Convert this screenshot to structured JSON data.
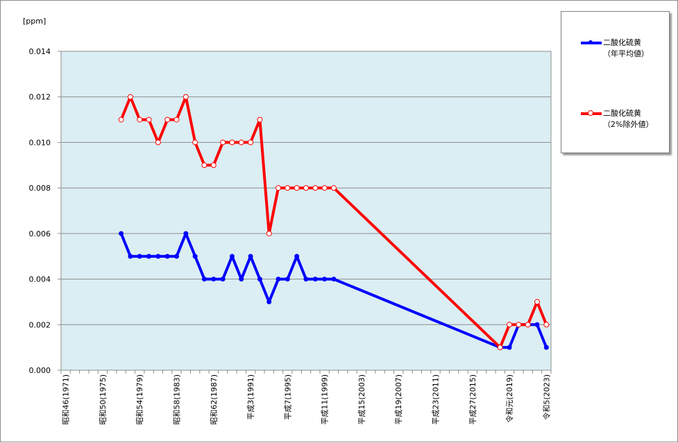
{
  "chart_data": {
    "type": "line",
    "unit_label": "[ppm]",
    "ylim": [
      0,
      0.014
    ],
    "yticks": [
      "0.000",
      "0.002",
      "0.004",
      "0.006",
      "0.008",
      "0.010",
      "0.012",
      "0.014"
    ],
    "x_years": [
      1971,
      1972,
      1973,
      1974,
      1975,
      1976,
      1977,
      1978,
      1979,
      1980,
      1981,
      1982,
      1983,
      1984,
      1985,
      1986,
      1987,
      1988,
      1989,
      1990,
      1991,
      1992,
      1993,
      1994,
      1995,
      1996,
      1997,
      1998,
      1999,
      2000,
      2001,
      2002,
      2003,
      2004,
      2005,
      2006,
      2007,
      2008,
      2009,
      2010,
      2011,
      2012,
      2013,
      2014,
      2015,
      2016,
      2017,
      2018,
      2019,
      2020,
      2021,
      2022,
      2023
    ],
    "xtick_labels": [
      {
        "year": 1971,
        "label": "昭和46(1971)"
      },
      {
        "year": 1975,
        "label": "昭和50(1975)"
      },
      {
        "year": 1979,
        "label": "昭和54(1979)"
      },
      {
        "year": 1983,
        "label": "昭和58(1983)"
      },
      {
        "year": 1987,
        "label": "昭和62(1987)"
      },
      {
        "year": 1991,
        "label": "平成3(1991)"
      },
      {
        "year": 1995,
        "label": "平成7(1995)"
      },
      {
        "year": 1999,
        "label": "平成11(1999)"
      },
      {
        "year": 2003,
        "label": "平成15(2003)"
      },
      {
        "year": 2007,
        "label": "平成19(2007)"
      },
      {
        "year": 2011,
        "label": "平成23(2011)"
      },
      {
        "year": 2015,
        "label": "平成27(2015)"
      },
      {
        "year": 2019,
        "label": "令和元(2019)"
      },
      {
        "year": 2023,
        "label": "令和5(2023)"
      }
    ],
    "grid": true,
    "legend_position": "right",
    "series": [
      {
        "name_line1": "二酸化硫黄",
        "name_line2": "（年平均値）",
        "color": "#0000ff",
        "marker": "filled-circle",
        "points": [
          [
            1977,
            0.006
          ],
          [
            1978,
            0.005
          ],
          [
            1979,
            0.005
          ],
          [
            1980,
            0.005
          ],
          [
            1981,
            0.005
          ],
          [
            1982,
            0.005
          ],
          [
            1983,
            0.005
          ],
          [
            1984,
            0.006
          ],
          [
            1985,
            0.005
          ],
          [
            1986,
            0.004
          ],
          [
            1987,
            0.004
          ],
          [
            1988,
            0.004
          ],
          [
            1989,
            0.005
          ],
          [
            1990,
            0.004
          ],
          [
            1991,
            0.005
          ],
          [
            1992,
            0.004
          ],
          [
            1993,
            0.003
          ],
          [
            1994,
            0.004
          ],
          [
            1995,
            0.004
          ],
          [
            1996,
            0.005
          ],
          [
            1997,
            0.004
          ],
          [
            1998,
            0.004
          ],
          [
            1999,
            0.004
          ],
          [
            2000,
            0.004
          ],
          [
            2018,
            0.001
          ],
          [
            2019,
            0.001
          ],
          [
            2020,
            0.002
          ],
          [
            2021,
            0.002
          ],
          [
            2022,
            0.002
          ],
          [
            2023,
            0.001
          ]
        ]
      },
      {
        "name_line1": "二酸化硫黄",
        "name_line2": "（2%除外値）",
        "color": "#ff0000",
        "marker": "hollow-circle",
        "points": [
          [
            1977,
            0.011
          ],
          [
            1978,
            0.012
          ],
          [
            1979,
            0.011
          ],
          [
            1980,
            0.011
          ],
          [
            1981,
            0.01
          ],
          [
            1982,
            0.011
          ],
          [
            1983,
            0.011
          ],
          [
            1984,
            0.012
          ],
          [
            1985,
            0.01
          ],
          [
            1986,
            0.009
          ],
          [
            1987,
            0.009
          ],
          [
            1988,
            0.01
          ],
          [
            1989,
            0.01
          ],
          [
            1990,
            0.01
          ],
          [
            1991,
            0.01
          ],
          [
            1992,
            0.011
          ],
          [
            1993,
            0.006
          ],
          [
            1994,
            0.008
          ],
          [
            1995,
            0.008
          ],
          [
            1996,
            0.008
          ],
          [
            1997,
            0.008
          ],
          [
            1998,
            0.008
          ],
          [
            1999,
            0.008
          ],
          [
            2000,
            0.008
          ],
          [
            2018,
            0.001
          ],
          [
            2019,
            0.002
          ],
          [
            2020,
            0.002
          ],
          [
            2021,
            0.002
          ],
          [
            2022,
            0.003
          ],
          [
            2023,
            0.002
          ]
        ]
      }
    ]
  }
}
